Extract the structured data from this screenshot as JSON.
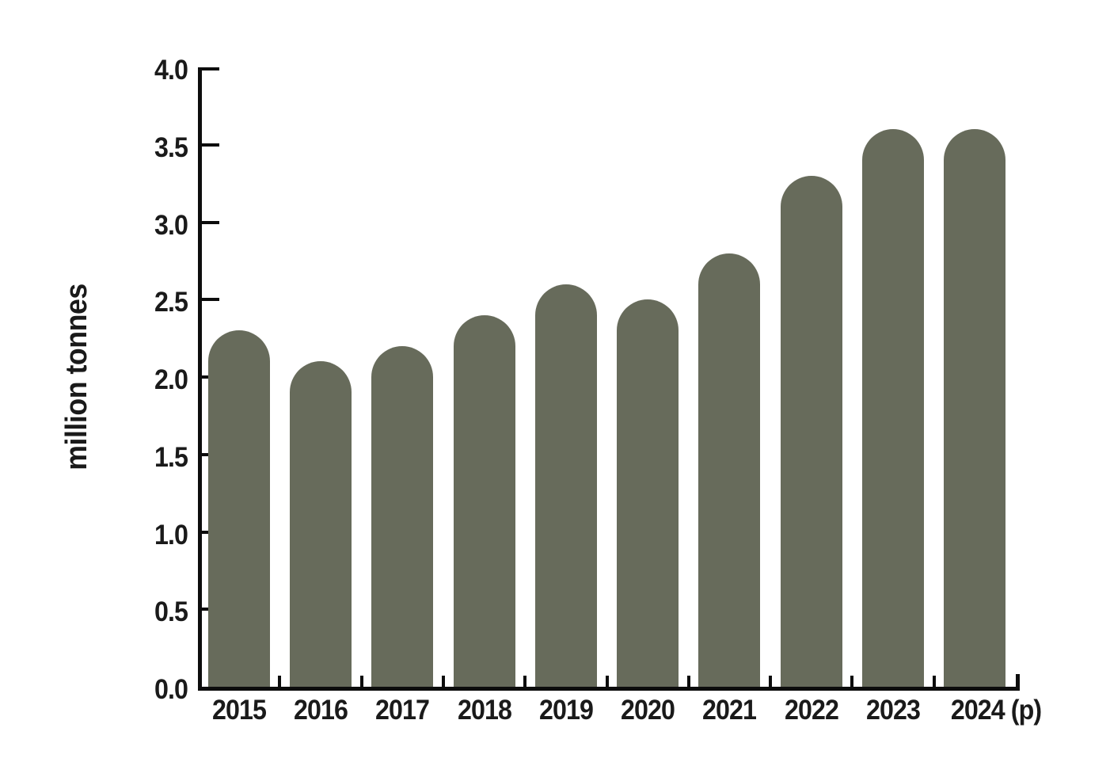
{
  "figure": {
    "background": "#ffffff"
  },
  "chart_data": {
    "type": "bar",
    "title": "",
    "xlabel": "",
    "ylabel": "million tonnes",
    "categories": [
      "2015",
      "2016",
      "2017",
      "2018",
      "2019",
      "2020",
      "2021",
      "2022",
      "2023",
      "2024 (p)"
    ],
    "values": [
      2.3,
      2.1,
      2.2,
      2.4,
      2.6,
      2.5,
      2.8,
      3.3,
      3.6,
      3.6
    ],
    "ylim": [
      0.0,
      4.0
    ],
    "ytick_step": 0.5,
    "ytick_labels": [
      "4.0",
      "3.5",
      "3.0",
      "2.5",
      "2.0",
      "1.5",
      "1.0",
      "0.5",
      "0.0"
    ],
    "grid": false,
    "legend_position": "none",
    "bar_cap": "rounded-top",
    "bar_color": "#676B5B",
    "axis_color": "#0d0d0d",
    "text_color": "#1a1a1a"
  }
}
